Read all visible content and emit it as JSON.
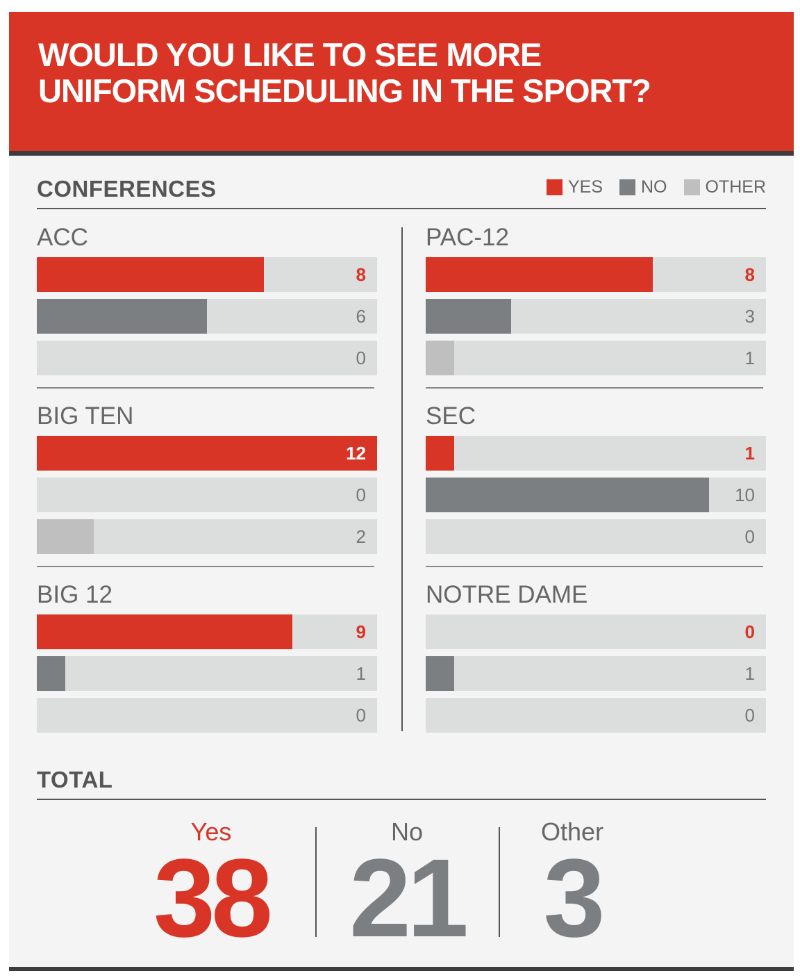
{
  "title": "WOULD YOU LIKE TO SEE MORE\nUNIFORM SCHEDULING IN THE SPORT?",
  "conferences_label": "CONFERENCES",
  "total_label": "TOTAL",
  "colors": {
    "yes": "#d93526",
    "no": "#7b7f82",
    "other": "#bfbfbf",
    "track": "#dcdddd",
    "header": "#d93526"
  },
  "legend": [
    {
      "key": "yes",
      "label": "YES"
    },
    {
      "key": "no",
      "label": "NO"
    },
    {
      "key": "other",
      "label": "OTHER"
    }
  ],
  "chart_data": {
    "type": "bar",
    "orientation": "horizontal",
    "title": "WOULD YOU LIKE TO SEE MORE UNIFORM SCHEDULING IN THE SPORT?",
    "scale_max": 12,
    "series_names": [
      "YES",
      "NO",
      "OTHER"
    ],
    "conferences": [
      {
        "name": "ACC",
        "yes": 8,
        "no": 6,
        "other": 0
      },
      {
        "name": "PAC-12",
        "yes": 8,
        "no": 3,
        "other": 1
      },
      {
        "name": "BIG TEN",
        "yes": 12,
        "no": 0,
        "other": 2
      },
      {
        "name": "SEC",
        "yes": 1,
        "no": 10,
        "other": 0
      },
      {
        "name": "BIG 12",
        "yes": 9,
        "no": 1,
        "other": 0
      },
      {
        "name": "NOTRE DAME",
        "yes": 0,
        "no": 1,
        "other": 0
      }
    ],
    "totals": [
      {
        "key": "yes",
        "label": "Yes",
        "value": 38
      },
      {
        "key": "no",
        "label": "No",
        "value": 21
      },
      {
        "key": "other",
        "label": "Other",
        "value": 3
      }
    ]
  }
}
